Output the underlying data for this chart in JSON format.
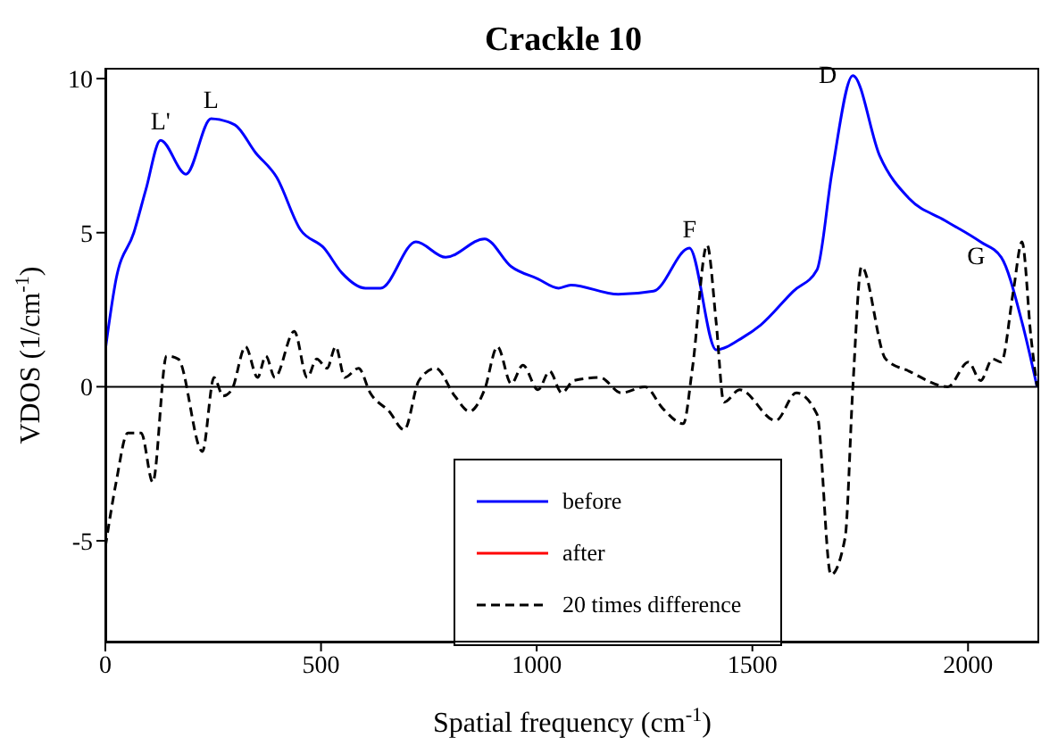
{
  "chart_data": {
    "type": "line",
    "title": "Crackle 10",
    "xlabel": "Spatial frequency (cm$^{-1}$)",
    "ylabel": "VDOS (1/cm$^{-1}$)",
    "xlim": [
      0,
      2165
    ],
    "xticks": [
      0,
      500,
      1000,
      1500,
      2000
    ],
    "ylim": [
      -8.3,
      10.35
    ],
    "yticks": [
      -5,
      0,
      5,
      10
    ],
    "legend": "bottom",
    "marker": "none",
    "ref_lines": [
      {
        "axis": "y",
        "value": 0,
        "color": "#000000"
      }
    ],
    "annotations": [
      {
        "text": "L'",
        "x": 128,
        "y": 8
      },
      {
        "text": "L",
        "x": 245,
        "y": 8.7
      },
      {
        "text": "F",
        "x": 1354,
        "y": 4.5
      },
      {
        "text": "D",
        "x": 1733,
        "y": 10.1
      },
      {
        "text": "G",
        "x": 2077,
        "y": 4.2
      }
    ],
    "series": [
      {
        "name": "before",
        "color": "#0000ff",
        "line_style": "solid",
        "x": [
          0,
          25,
          66,
          94,
          128,
          187,
          245,
          300,
          348,
          397,
          452,
          507,
          548,
          603,
          638,
          720,
          789,
          879,
          941,
          1003,
          1051,
          1079,
          1189,
          1271,
          1354,
          1416,
          1478,
          1519,
          1595,
          1650,
          1685,
          1733,
          1795,
          1864,
          1946,
          2029,
          2077,
          2125,
          2160
        ],
        "values": [
          1.2,
          3.5,
          5.0,
          6.4,
          8.0,
          6.9,
          8.7,
          8.5,
          7.6,
          6.8,
          5.1,
          4.5,
          3.7,
          3.2,
          3.2,
          4.7,
          4.2,
          4.8,
          3.9,
          3.5,
          3.2,
          3.3,
          3.0,
          3.1,
          4.5,
          1.2,
          1.6,
          2.0,
          3.1,
          3.8,
          7.0,
          10.1,
          7.5,
          6.1,
          5.4,
          4.7,
          4.2,
          2.1,
          0
        ]
      },
      {
        "name": "after",
        "color": "#ff0000",
        "line_style": "solid"
      },
      {
        "name": "20 times difference",
        "color": "#000000",
        "line_style": "dashed",
        "x": [
          0,
          25,
          52,
          83,
          110,
          142,
          169,
          225,
          252,
          273,
          293,
          325,
          353,
          372,
          393,
          438,
          468,
          490,
          514,
          534,
          555,
          587,
          614,
          658,
          693,
          727,
          766,
          810,
          844,
          879,
          909,
          941,
          968,
          1003,
          1030,
          1058,
          1086,
          1147,
          1196,
          1251,
          1292,
          1340,
          1361,
          1395,
          1416,
          1434,
          1471,
          1554,
          1602,
          1650,
          1682,
          1715,
          1733,
          1753,
          1809,
          1864,
          1953,
          2001,
          2029,
          2057,
          2077,
          2105,
          2125,
          2146,
          2160
        ],
        "values": [
          -5.2,
          -3.1,
          -1.5,
          -1.5,
          -3.1,
          1.0,
          0.9,
          -2.1,
          0.3,
          -0.3,
          -0.1,
          1.3,
          0.3,
          1.0,
          0.3,
          1.8,
          0.3,
          0.9,
          0.6,
          1.3,
          0.3,
          0.6,
          -0.2,
          -0.8,
          -1.4,
          0.2,
          0.6,
          -0.3,
          -0.8,
          -0.1,
          1.3,
          0.1,
          0.7,
          -0.1,
          0.5,
          -0.2,
          0.2,
          0.3,
          -0.2,
          0,
          -0.7,
          -1.2,
          0.6,
          4.6,
          2.1,
          -0.5,
          -0.1,
          -1.1,
          -0.2,
          -0.9,
          -6.1,
          -4.9,
          0,
          3.9,
          0.9,
          0.5,
          0,
          0.8,
          0.2,
          0.9,
          0.8,
          3.1,
          4.7,
          1.6,
          0
        ]
      }
    ]
  }
}
